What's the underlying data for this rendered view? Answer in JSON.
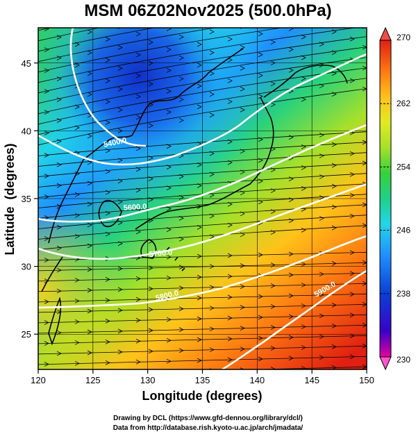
{
  "title": "MSM 06Z02Nov2025 (500.0hPa)",
  "axes": {
    "xlabel": "Longitude (degrees)",
    "ylabel": "Latitude  (degrees)",
    "xticks": [
      "120",
      "125",
      "130",
      "135",
      "140",
      "145",
      "150"
    ],
    "yticks": [
      "25",
      "30",
      "35",
      "40",
      "45"
    ],
    "xlim": [
      120,
      150
    ],
    "ylim": [
      22.4,
      47.6
    ]
  },
  "colorbar": {
    "min": 230,
    "max": 270,
    "labels": [
      "270",
      "262",
      "254",
      "246",
      "238",
      "230"
    ],
    "colors": [
      "#e5009e",
      "#3a00c8",
      "#0a3fd6",
      "#1f8fff",
      "#22d6e8",
      "#20d08a",
      "#34d23a",
      "#a6e02a",
      "#e0ea20",
      "#ffc21a",
      "#ff7a12",
      "#f0401a",
      "#e02012"
    ]
  },
  "contours": [
    {
      "label": "5400.0",
      "value": 5400
    },
    {
      "label": "5600.0",
      "value": 5600
    },
    {
      "label": "5700.0",
      "value": 5700
    },
    {
      "label": "5800.0",
      "value": 5800
    },
    {
      "label": "5900.0",
      "value": 5900
    }
  ],
  "footer": {
    "line1": "Drawing by DCL (https://www.gfd-dennou.org/library/dcl/)",
    "line2": "Data from http://database.rish.kyoto-u.ac.jp/arch/jmadata/"
  }
}
